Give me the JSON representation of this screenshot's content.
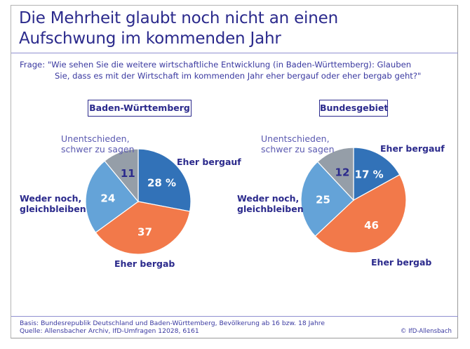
{
  "title_line1": "Die Mehrheit glaubt noch nicht an einen",
  "title_line2": "Aufschwung im kommenden Jahr",
  "question_line1": "Frage: \"Wie sehen Sie die weitere wirtschaftliche Entwicklung (in Baden-Württemberg): Glauben",
  "question_line2": "Sie, dass es mit der Wirtschaft im kommenden Jahr eher bergauf oder eher bergab geht?\"",
  "colors": {
    "bergauf": "#3272b8",
    "bergab": "#f2794a",
    "weder": "#64a3d8",
    "unentschieden": "#959ea8",
    "text": "#2b2a8c"
  },
  "footer": {
    "basis": "Basis: Bundesrepublik Deutschland und Baden-Württemberg, Bevölkerung ab 16 bzw. 18 Jahre",
    "quelle": "Quelle: Allensbacher Archiv, IfD-Umfragen 12028, 6161",
    "copyright": "© IfD-Allensbach"
  },
  "chart_data": [
    {
      "type": "pie",
      "title": "Baden-Württemberg",
      "unit": "%",
      "categories": [
        "Eher bergauf",
        "Eher bergab",
        "Weder noch, gleichbleiben",
        "Unentschieden, schwer zu sagen"
      ],
      "values": [
        28,
        37,
        24,
        11
      ],
      "value_labels": [
        "28 %",
        "37",
        "24",
        "11"
      ],
      "start": "12 o'clock, clockwise"
    },
    {
      "type": "pie",
      "title": "Bundesgebiet",
      "unit": "%",
      "categories": [
        "Eher bergauf",
        "Eher bergab",
        "Weder noch, gleichbleiben",
        "Unentschieden, schwer zu sagen"
      ],
      "values": [
        17,
        46,
        25,
        12
      ],
      "value_labels": [
        "17 %",
        "46",
        "25",
        "12"
      ],
      "start": "12 o'clock, clockwise"
    }
  ],
  "labels": {
    "bergauf": "Eher bergauf",
    "bergab": "Eher bergab",
    "weder_1": "Weder noch,",
    "weder_2": "gleichbleiben",
    "unent_1": "Unentschieden,",
    "unent_2": "schwer zu sagen"
  }
}
